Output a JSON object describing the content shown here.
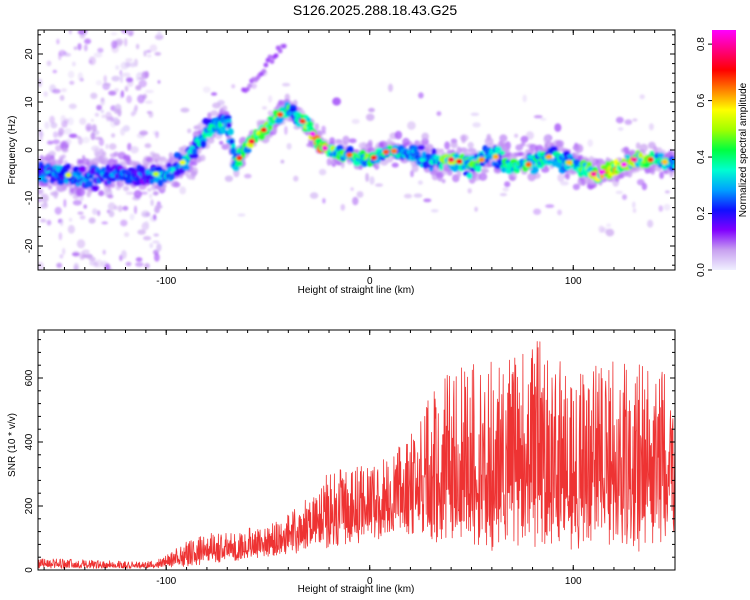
{
  "title": "S126.2025.288.18.43.G25",
  "chart_data": [
    {
      "type": "heatmap",
      "title": "S126.2025.288.18.43.G25",
      "xlabel": "Height of straight line (km)",
      "ylabel": "Frequency (Hz)",
      "xlim": [
        -163,
        150
      ],
      "ylim": [
        -25,
        25
      ],
      "x_ticks": [
        -100,
        0,
        100
      ],
      "y_ticks": [
        -20,
        -10,
        0,
        10,
        20
      ],
      "colorbar": {
        "label": "Normalized spectral amplitude",
        "range": [
          0.0,
          0.85
        ],
        "ticks": [
          0.0,
          0.2,
          0.4,
          0.6,
          0.8
        ],
        "stops": [
          "#f0f0ff",
          "#c8a0f0",
          "#8000ff",
          "#1010ff",
          "#00a0ff",
          "#00ffd0",
          "#00ff40",
          "#a0ff00",
          "#ffff00",
          "#ff8000",
          "#ff0000",
          "#ff0080",
          "#ff00ff"
        ]
      },
      "ridge": {
        "x": [
          -163,
          -150,
          -140,
          -130,
          -120,
          -110,
          -100,
          -90,
          -80,
          -70,
          -66,
          -60,
          -50,
          -40,
          -36,
          -30,
          -25,
          -20,
          -10,
          0,
          10,
          20,
          30,
          40,
          50,
          60,
          70,
          80,
          90,
          100,
          110,
          120,
          130,
          140,
          150
        ],
        "y": [
          -5,
          -5,
          -6,
          -5,
          -5,
          -5,
          -5,
          -2,
          4,
          6,
          -3,
          1,
          5,
          9,
          7,
          5,
          1,
          0,
          -1,
          -2,
          0,
          -1,
          -2,
          -2,
          -3,
          -1,
          -3,
          -3,
          -1,
          -3,
          -5,
          -4,
          -2,
          -2,
          -3
        ],
        "level": [
          0.3,
          0.35,
          0.32,
          0.3,
          0.3,
          0.28,
          0.35,
          0.35,
          0.4,
          0.35,
          0.45,
          0.55,
          0.5,
          0.45,
          0.35,
          0.6,
          0.75,
          0.55,
          0.45,
          0.5,
          0.45,
          0.4,
          0.35,
          0.55,
          0.45,
          0.4,
          0.45,
          0.45,
          0.4,
          0.4,
          0.6,
          0.75,
          0.6,
          0.45,
          0.35
        ],
        "width": [
          3,
          3,
          3,
          3,
          3,
          3,
          3,
          3,
          3,
          3,
          2,
          2,
          2,
          2,
          2,
          2,
          2,
          2,
          2,
          2,
          2,
          2,
          3,
          3,
          3,
          3,
          3,
          3,
          3,
          3,
          2,
          2,
          2,
          2,
          2
        ]
      }
    },
    {
      "type": "line",
      "xlabel": "Height of straight line (km)",
      "ylabel": "SNR (10 * v/v)",
      "xlim": [
        -163,
        150
      ],
      "ylim": [
        0,
        750
      ],
      "x_ticks": [
        -100,
        0,
        100
      ],
      "y_ticks": [
        0,
        200,
        400,
        600
      ],
      "series": [
        {
          "name": "SNR",
          "color": "#ee3333",
          "envelope_x": [
            -163,
            -150,
            -130,
            -110,
            -100,
            -90,
            -80,
            -70,
            -60,
            -50,
            -40,
            -30,
            -20,
            -10,
            0,
            10,
            20,
            30,
            40,
            50,
            60,
            70,
            80,
            90,
            100,
            110,
            120,
            130,
            140,
            150
          ],
          "envelope_max": [
            35,
            35,
            30,
            25,
            45,
            95,
            120,
            115,
            130,
            140,
            180,
            230,
            310,
            330,
            320,
            360,
            430,
            560,
            640,
            640,
            670,
            660,
            730,
            700,
            600,
            660,
            650,
            640,
            660,
            560
          ],
          "envelope_min": [
            5,
            5,
            5,
            5,
            8,
            10,
            20,
            25,
            35,
            40,
            50,
            55,
            70,
            80,
            90,
            100,
            110,
            80,
            80,
            80,
            60,
            80,
            60,
            60,
            60,
            80,
            80,
            50,
            50,
            120
          ]
        }
      ]
    }
  ]
}
